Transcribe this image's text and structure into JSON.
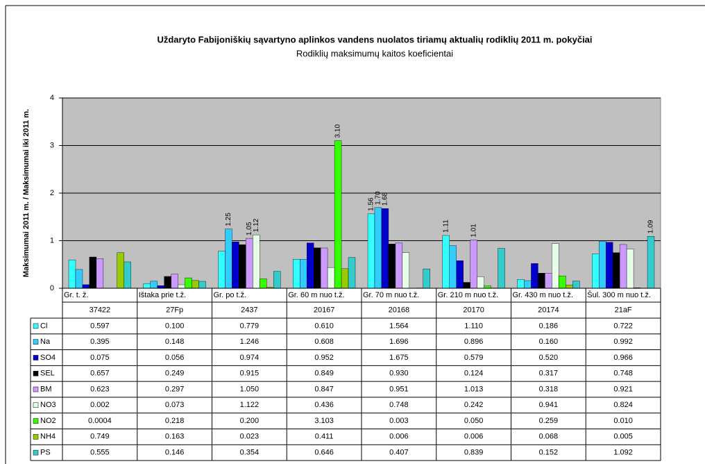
{
  "chart_data": {
    "type": "bar",
    "title": "Uždaryto Fabijoniškių sąvartyno aplinkos vandens nuolatos tiriamų aktualių rodiklių 2011 m. pokyčiai",
    "subtitle": "Rodiklių maksimumų kaitos koeficientai",
    "y_label": "Maksimumai 2011 m. / Maksimumai iki 2011 m.",
    "categories": [
      [
        "Gr. t. ž.",
        "37422"
      ],
      [
        "Ištaka prie t.ž.",
        "27Fp"
      ],
      [
        "Gr. po t.ž.",
        "2437"
      ],
      [
        "Gr. 60 m nuo t.ž.",
        "20167"
      ],
      [
        "Gr. 70 m nuo t.ž.",
        "20168"
      ],
      [
        "Gr. 210 m nuo t.ž.",
        "20170"
      ],
      [
        "Gr. 430 m nuo t.ž.",
        "20174"
      ],
      [
        "Šul. 300 m nuo t.ž.",
        "21aF"
      ]
    ],
    "ylim": [
      0,
      4
    ],
    "yticks": [
      0,
      1,
      2,
      3,
      4
    ],
    "grid": true,
    "series": [
      {
        "name": "Cl",
        "color": "#33ffff",
        "values": [
          0.597,
          0.1,
          0.779,
          0.61,
          1.564,
          1.11,
          0.186,
          0.722
        ],
        "value_labels": [
          "0.597",
          "0.100",
          "0.779",
          "0.610",
          "1.564",
          "1.110",
          "0.186",
          "0.722"
        ],
        "bar_labels": [
          null,
          null,
          null,
          null,
          "1.56",
          "1.11",
          null,
          null
        ]
      },
      {
        "name": "Na",
        "color": "#33ccff",
        "values": [
          0.395,
          0.148,
          1.246,
          0.608,
          1.696,
          0.896,
          0.16,
          0.992
        ],
        "value_labels": [
          "0.395",
          "0.148",
          "1.246",
          "0.608",
          "1.696",
          "0.896",
          "0.160",
          "0.992"
        ],
        "bar_labels": [
          null,
          null,
          "1.25",
          null,
          "1.70",
          null,
          null,
          null
        ]
      },
      {
        "name": "SO4",
        "color": "#0000cc",
        "values": [
          0.075,
          0.056,
          0.974,
          0.952,
          1.675,
          0.579,
          0.52,
          0.966
        ],
        "value_labels": [
          "0.075",
          "0.056",
          "0.974",
          "0.952",
          "1.675",
          "0.579",
          "0.520",
          "0.966"
        ],
        "bar_labels": [
          null,
          null,
          null,
          null,
          "1.68",
          null,
          null,
          null
        ]
      },
      {
        "name": "SEL",
        "color": "#000000",
        "values": [
          0.657,
          0.249,
          0.915,
          0.849,
          0.93,
          0.124,
          0.317,
          0.748
        ],
        "value_labels": [
          "0.657",
          "0.249",
          "0.915",
          "0.849",
          "0.930",
          "0.124",
          "0.317",
          "0.748"
        ]
      },
      {
        "name": "BM",
        "color": "#cc99ff",
        "values": [
          0.623,
          0.297,
          1.05,
          0.847,
          0.951,
          1.013,
          0.318,
          0.921
        ],
        "value_labels": [
          "0.623",
          "0.297",
          "1.050",
          "0.847",
          "0.951",
          "1.013",
          "0.318",
          "0.921"
        ],
        "bar_labels": [
          null,
          null,
          "1.05",
          null,
          null,
          "1.01",
          null,
          null
        ]
      },
      {
        "name": "NO3",
        "color": "#e6ffe6",
        "values": [
          0.002,
          0.073,
          1.122,
          0.436,
          0.748,
          0.242,
          0.941,
          0.824
        ],
        "value_labels": [
          "0.002",
          "0.073",
          "1.122",
          "0.436",
          "0.748",
          "0.242",
          "0.941",
          "0.824"
        ],
        "bar_labels": [
          null,
          null,
          "1.12",
          null,
          null,
          null,
          null,
          null
        ]
      },
      {
        "name": "NO2",
        "color": "#33ff00",
        "values": [
          0.0004,
          0.218,
          0.2,
          3.103,
          0.003,
          0.05,
          0.259,
          0.01
        ],
        "value_labels": [
          "0.0004",
          "0.218",
          "0.200",
          "3.103",
          "0.003",
          "0.050",
          "0.259",
          "0.010"
        ],
        "bar_labels": [
          null,
          null,
          null,
          "3.10",
          null,
          null,
          null,
          null
        ]
      },
      {
        "name": "NH4",
        "color": "#99cc00",
        "values": [
          0.749,
          0.163,
          0.023,
          0.411,
          0.006,
          0.006,
          0.068,
          0.005
        ],
        "value_labels": [
          "0.749",
          "0.163",
          "0.023",
          "0.411",
          "0.006",
          "0.006",
          "0.068",
          "0.005"
        ]
      },
      {
        "name": "PS",
        "color": "#33cccc",
        "values": [
          0.555,
          0.146,
          0.354,
          0.646,
          0.407,
          0.839,
          0.152,
          1.092
        ],
        "value_labels": [
          "0.555",
          "0.146",
          "0.354",
          "0.646",
          "0.407",
          "0.839",
          "0.152",
          "1.092"
        ],
        "bar_labels": [
          null,
          null,
          null,
          null,
          null,
          null,
          null,
          "1.09"
        ]
      }
    ]
  }
}
